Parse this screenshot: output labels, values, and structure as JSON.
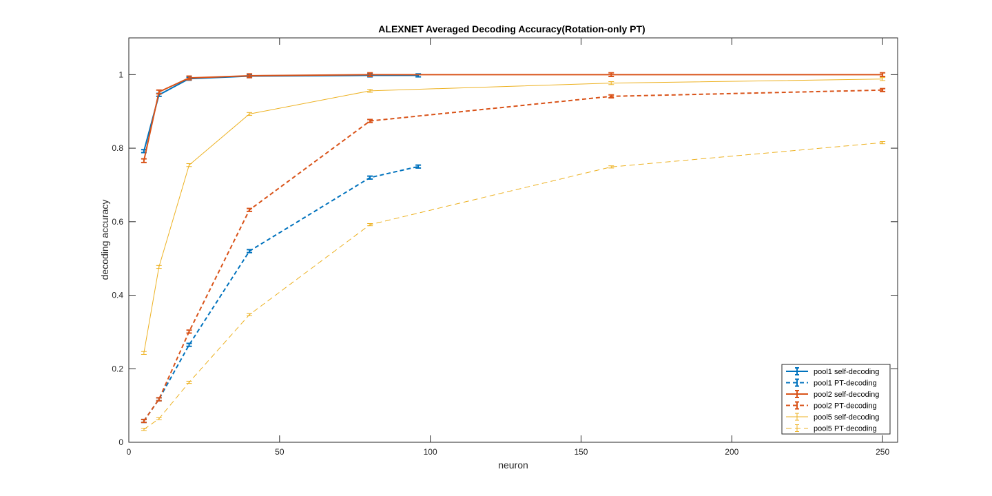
{
  "chart_data": {
    "type": "line",
    "title": "ALEXNET Averaged Decoding Accuracy(Rotation-only PT)",
    "xlabel": "neuron",
    "ylabel": "decoding accuracy",
    "xlim": [
      0,
      255
    ],
    "ylim": [
      0,
      1.1
    ],
    "xticks": [
      0,
      50,
      100,
      150,
      200,
      250
    ],
    "yticks": [
      0,
      0.2,
      0.4,
      0.6,
      0.8,
      1
    ],
    "ytick_labels": [
      "0",
      "0.2",
      "0.4",
      "0.6",
      "0.8",
      "1"
    ],
    "grid": false,
    "legend_position": "bottom-right",
    "series": [
      {
        "name": "pool1 self-decoding",
        "color": "#0072BD",
        "style": "solid",
        "width": 2,
        "x": [
          5,
          10,
          20,
          40,
          80,
          96
        ],
        "y": [
          0.792,
          0.945,
          0.989,
          0.996,
          0.998,
          0.998
        ],
        "err": 0.004
      },
      {
        "name": "pool1 PT-decoding",
        "color": "#0072BD",
        "style": "dashed",
        "width": 2,
        "x": [
          5,
          10,
          20,
          40,
          80,
          96
        ],
        "y": [
          0.058,
          0.117,
          0.265,
          0.52,
          0.72,
          0.75
        ],
        "err": 0.004
      },
      {
        "name": "pool2 self-decoding",
        "color": "#D95319",
        "style": "solid",
        "width": 2,
        "x": [
          5,
          10,
          20,
          40,
          80,
          160,
          250
        ],
        "y": [
          0.766,
          0.953,
          0.991,
          0.997,
          1.0,
          1.0,
          1.0
        ],
        "err": 0.005
      },
      {
        "name": "pool2 PT-decoding",
        "color": "#D95319",
        "style": "dashed",
        "width": 2,
        "x": [
          5,
          10,
          20,
          40,
          80,
          160,
          250
        ],
        "y": [
          0.058,
          0.117,
          0.301,
          0.632,
          0.874,
          0.941,
          0.958
        ],
        "err": 0.004
      },
      {
        "name": "pool5 self-decoding",
        "color": "#EDB120",
        "style": "solid",
        "width": 1,
        "x": [
          5,
          10,
          20,
          40,
          80,
          160,
          250
        ],
        "y": [
          0.243,
          0.477,
          0.754,
          0.893,
          0.956,
          0.977,
          0.988
        ],
        "err": 0.004
      },
      {
        "name": "pool5 PT-decoding",
        "color": "#EDB120",
        "style": "dashed",
        "width": 1,
        "x": [
          5,
          10,
          20,
          40,
          80,
          160,
          250
        ],
        "y": [
          0.035,
          0.064,
          0.163,
          0.347,
          0.592,
          0.749,
          0.815
        ],
        "err": 0.003
      }
    ]
  }
}
